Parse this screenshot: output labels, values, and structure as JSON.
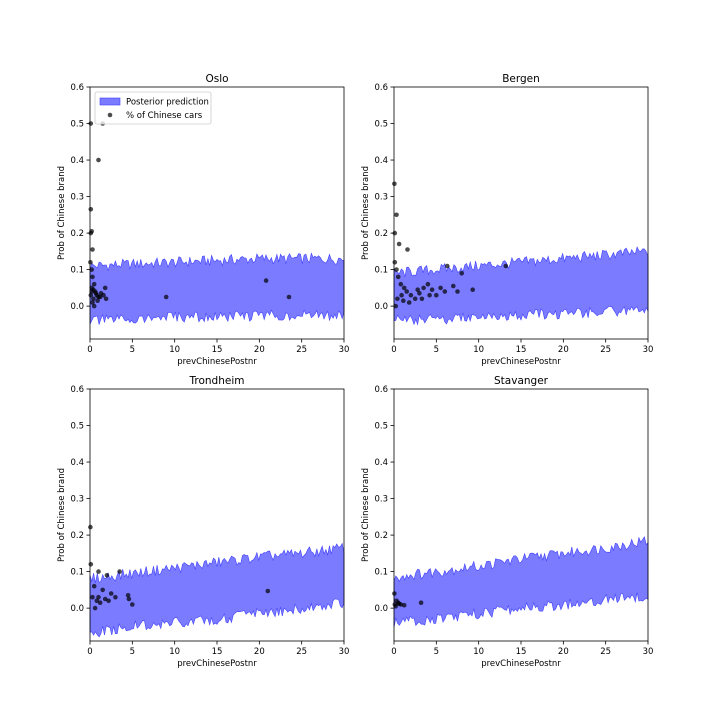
{
  "colors": {
    "band_fill": "#7b7bff",
    "band_edge": "#4040ff",
    "point": "#000000"
  },
  "chart_data": [
    {
      "type": "area",
      "title": "Oslo",
      "xlabel": "prevChinesePostnr",
      "ylabel": "Prob of Chinese brand",
      "xlim": [
        0,
        30
      ],
      "ylim": [
        -0.09,
        0.6
      ],
      "xticks": [
        0,
        5,
        10,
        15,
        20,
        25,
        30
      ],
      "yticks": [
        0.0,
        0.1,
        0.2,
        0.3,
        0.4,
        0.5,
        0.6
      ],
      "legend": {
        "position": "top-left",
        "entries": [
          "Posterior prediction",
          "% of Chinese cars"
        ]
      },
      "band": {
        "x": [
          0,
          5,
          10,
          15,
          20,
          25,
          30
        ],
        "lower": [
          -0.04,
          -0.035,
          -0.03,
          -0.03,
          -0.025,
          -0.025,
          -0.025
        ],
        "upper": [
          0.11,
          0.115,
          0.12,
          0.125,
          0.13,
          0.13,
          0.13
        ]
      },
      "points": [
        [
          0.1,
          0.5
        ],
        [
          1.5,
          0.5
        ],
        [
          1.0,
          0.4
        ],
        [
          0.1,
          0.265
        ],
        [
          0.1,
          0.2
        ],
        [
          0.2,
          0.205
        ],
        [
          0.3,
          0.155
        ],
        [
          0.05,
          0.12
        ],
        [
          0.2,
          0.1
        ],
        [
          0.3,
          0.08
        ],
        [
          0.5,
          0.06
        ],
        [
          0.2,
          0.05
        ],
        [
          0.6,
          0.04
        ],
        [
          0.8,
          0.03
        ],
        [
          0.1,
          0.03
        ],
        [
          0.4,
          0.02
        ],
        [
          0.9,
          0.015
        ],
        [
          1.2,
          0.025
        ],
        [
          1.6,
          0.03
        ],
        [
          1.8,
          0.05
        ],
        [
          0.3,
          0.01
        ],
        [
          0.5,
          0.0
        ],
        [
          0.7,
          0.035
        ],
        [
          1.0,
          0.025
        ],
        [
          0.2,
          0.04
        ],
        [
          0.4,
          0.045
        ],
        [
          1.3,
          0.035
        ],
        [
          1.9,
          0.02
        ],
        [
          9.0,
          0.025
        ],
        [
          20.8,
          0.07
        ],
        [
          23.5,
          0.025
        ]
      ]
    },
    {
      "type": "area",
      "title": "Bergen",
      "xlabel": "prevChinesePostnr",
      "ylabel": "Prob of Chinese brand",
      "xlim": [
        0,
        30
      ],
      "ylim": [
        -0.09,
        0.6
      ],
      "xticks": [
        0,
        5,
        10,
        15,
        20,
        25,
        30
      ],
      "yticks": [
        0.0,
        0.1,
        0.2,
        0.3,
        0.4,
        0.5,
        0.6
      ],
      "band": {
        "x": [
          0,
          5,
          10,
          15,
          20,
          25,
          30
        ],
        "lower": [
          -0.04,
          -0.035,
          -0.03,
          -0.025,
          -0.02,
          -0.015,
          -0.01
        ],
        "upper": [
          0.09,
          0.1,
          0.11,
          0.12,
          0.13,
          0.14,
          0.15
        ]
      },
      "points": [
        [
          0.05,
          0.335
        ],
        [
          0.3,
          0.25
        ],
        [
          0.1,
          0.2
        ],
        [
          0.6,
          0.17
        ],
        [
          1.6,
          0.155
        ],
        [
          0.1,
          0.12
        ],
        [
          0.3,
          0.1
        ],
        [
          0.5,
          0.08
        ],
        [
          0.8,
          0.06
        ],
        [
          1.2,
          0.05
        ],
        [
          1.5,
          0.04
        ],
        [
          2.0,
          0.03
        ],
        [
          2.5,
          0.02
        ],
        [
          3.0,
          0.035
        ],
        [
          3.5,
          0.05
        ],
        [
          4.0,
          0.06
        ],
        [
          4.5,
          0.045
        ],
        [
          5.0,
          0.03
        ],
        [
          5.5,
          0.05
        ],
        [
          6.0,
          0.04
        ],
        [
          6.3,
          0.11
        ],
        [
          7.0,
          0.055
        ],
        [
          7.5,
          0.04
        ],
        [
          8.0,
          0.09
        ],
        [
          9.3,
          0.045
        ],
        [
          13.2,
          0.11
        ],
        [
          0.4,
          0.02
        ],
        [
          0.9,
          0.03
        ],
        [
          1.8,
          0.01
        ],
        [
          2.8,
          0.045
        ],
        [
          3.3,
          0.02
        ],
        [
          4.2,
          0.03
        ],
        [
          0.2,
          0.0
        ],
        [
          1.1,
          0.015
        ]
      ]
    },
    {
      "type": "area",
      "title": "Trondheim",
      "xlabel": "prevChinesePostnr",
      "ylabel": "Prob of Chinese brand",
      "xlim": [
        0,
        30
      ],
      "ylim": [
        -0.09,
        0.6
      ],
      "xticks": [
        0,
        5,
        10,
        15,
        20,
        25,
        30
      ],
      "yticks": [
        0.0,
        0.1,
        0.2,
        0.3,
        0.4,
        0.5,
        0.6
      ],
      "band": {
        "x": [
          0,
          5,
          10,
          15,
          20,
          25,
          30
        ],
        "lower": [
          -0.07,
          -0.05,
          -0.04,
          -0.03,
          -0.015,
          0.0,
          0.015
        ],
        "upper": [
          0.08,
          0.095,
          0.11,
          0.125,
          0.14,
          0.15,
          0.165
        ]
      },
      "points": [
        [
          0.05,
          0.222
        ],
        [
          0.1,
          0.12
        ],
        [
          1.0,
          0.1
        ],
        [
          3.5,
          0.1
        ],
        [
          2.0,
          0.09
        ],
        [
          0.5,
          0.06
        ],
        [
          1.5,
          0.05
        ],
        [
          2.5,
          0.04
        ],
        [
          3.0,
          0.03
        ],
        [
          4.5,
          0.035
        ],
        [
          4.6,
          0.025
        ],
        [
          5.0,
          0.01
        ],
        [
          0.3,
          0.03
        ],
        [
          0.8,
          0.02
        ],
        [
          1.2,
          0.015
        ],
        [
          1.8,
          0.025
        ],
        [
          2.2,
          0.02
        ],
        [
          0.6,
          0.0
        ],
        [
          1.0,
          0.03
        ],
        [
          21.0,
          0.047
        ]
      ]
    },
    {
      "type": "area",
      "title": "Stavanger",
      "xlabel": "prevChinesePostnr",
      "ylabel": "Prob of Chinese brand",
      "xlim": [
        0,
        30
      ],
      "ylim": [
        -0.09,
        0.6
      ],
      "xticks": [
        0,
        5,
        10,
        15,
        20,
        25,
        30
      ],
      "yticks": [
        0.0,
        0.1,
        0.2,
        0.3,
        0.4,
        0.5,
        0.6
      ],
      "band": {
        "x": [
          0,
          5,
          10,
          15,
          20,
          25,
          30
        ],
        "lower": [
          -0.04,
          -0.03,
          -0.015,
          0.0,
          0.01,
          0.025,
          0.035
        ],
        "upper": [
          0.085,
          0.1,
          0.115,
          0.135,
          0.15,
          0.165,
          0.185
        ]
      },
      "points": [
        [
          0.05,
          0.04
        ],
        [
          0.1,
          0.01
        ],
        [
          0.3,
          0.02
        ],
        [
          0.5,
          0.015
        ],
        [
          0.8,
          0.01
        ],
        [
          1.2,
          0.008
        ],
        [
          3.2,
          0.015
        ],
        [
          0.2,
          0.005
        ],
        [
          0.6,
          0.012
        ]
      ]
    }
  ]
}
